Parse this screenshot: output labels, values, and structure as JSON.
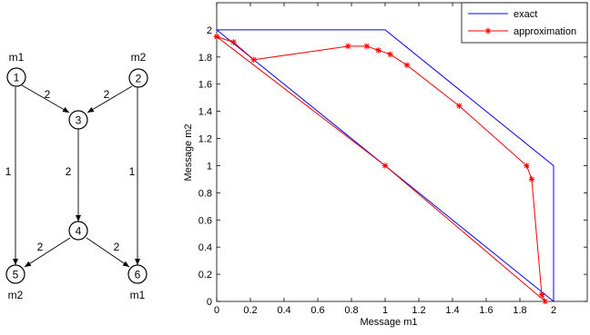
{
  "network": {
    "nodes": [
      {
        "id": "1",
        "label": "1",
        "tag": "m1"
      },
      {
        "id": "2",
        "label": "2",
        "tag": "m2"
      },
      {
        "id": "3",
        "label": "3",
        "tag": ""
      },
      {
        "id": "4",
        "label": "4",
        "tag": ""
      },
      {
        "id": "5",
        "label": "5",
        "tag": "m2"
      },
      {
        "id": "6",
        "label": "6",
        "tag": "m1"
      }
    ],
    "edges": [
      {
        "from": "1",
        "to": "3",
        "capacity": "2"
      },
      {
        "from": "2",
        "to": "3",
        "capacity": "2"
      },
      {
        "from": "1",
        "to": "5",
        "capacity": "1"
      },
      {
        "from": "2",
        "to": "6",
        "capacity": "1"
      },
      {
        "from": "3",
        "to": "4",
        "capacity": "2"
      },
      {
        "from": "4",
        "to": "5",
        "capacity": "2"
      },
      {
        "from": "4",
        "to": "6",
        "capacity": "2"
      }
    ]
  },
  "chart_data": {
    "type": "line",
    "xlabel": "Message m1",
    "ylabel": "Message m2",
    "xlim": [
      0,
      2.2
    ],
    "ylim": [
      0,
      2.2
    ],
    "xticks": [
      "0",
      "0.2",
      "0.4",
      "0.6",
      "0.8",
      "1",
      "1.2",
      "1.4",
      "1.6",
      "1.8",
      "2"
    ],
    "yticks": [
      "0",
      "0.2",
      "0.4",
      "0.6",
      "0.8",
      "1",
      "1.2",
      "1.4",
      "1.6",
      "1.8",
      "2"
    ],
    "grid": false,
    "legend_position": "top-right",
    "series": [
      {
        "name": "exact",
        "color": "#0000ff",
        "marker": "none",
        "x": [
          0,
          1,
          2,
          2,
          0
        ],
        "y": [
          2,
          2,
          1,
          0,
          2
        ]
      },
      {
        "name": "approximation",
        "color": "#ff0000",
        "marker": "star",
        "x": [
          0.0,
          0.1,
          0.22,
          0.78,
          0.89,
          0.96,
          1.03,
          1.13,
          1.44,
          1.84,
          1.87,
          1.93,
          1.95,
          1.0,
          0.0
        ],
        "y": [
          1.95,
          1.91,
          1.78,
          1.88,
          1.88,
          1.85,
          1.82,
          1.74,
          1.44,
          1.0,
          0.9,
          0.05,
          0.0,
          1.0,
          1.95
        ]
      }
    ]
  }
}
